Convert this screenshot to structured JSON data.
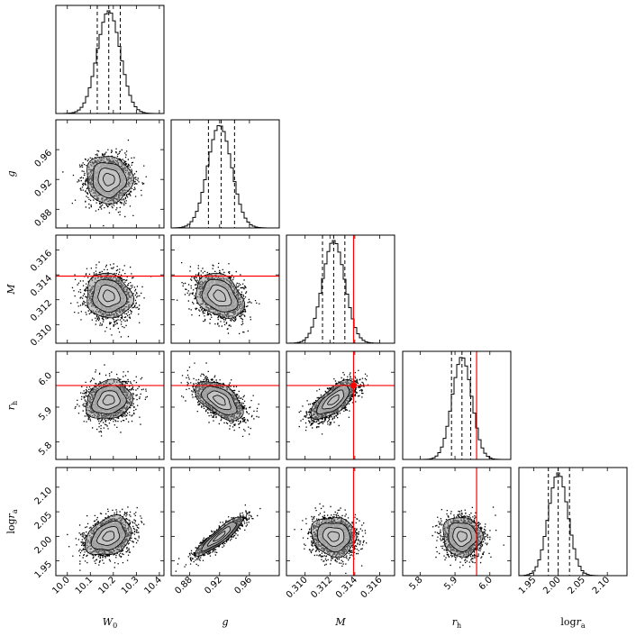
{
  "chart_data": {
    "type": "corner",
    "parameters": [
      {
        "key": "W0",
        "label": "W",
        "sub": "0",
        "range": [
          9.95,
          10.42
        ],
        "ticks": [
          10.0,
          10.1,
          10.2,
          10.3,
          10.4
        ],
        "tick_labels": [
          "10.0",
          "10.1",
          "10.2",
          "10.3",
          "10.4"
        ],
        "median": 10.18,
        "std": 0.05,
        "quantiles": [
          10.13,
          10.18,
          10.23
        ],
        "truth": null
      },
      {
        "key": "g",
        "label": "g",
        "sub": "",
        "range": [
          0.855,
          1.0
        ],
        "ticks": [
          0.88,
          0.92,
          0.96
        ],
        "tick_labels": [
          "0.88",
          "0.92",
          "0.96"
        ],
        "median": 0.92,
        "std": 0.016,
        "quantiles": [
          0.905,
          0.922,
          0.94
        ],
        "truth": null
      },
      {
        "key": "M",
        "label": "M",
        "sub": "",
        "range": [
          0.3085,
          0.3172
        ],
        "ticks": [
          0.31,
          0.312,
          0.314,
          0.316
        ],
        "tick_labels": [
          "0.310",
          "0.312",
          "0.314",
          "0.316"
        ],
        "median": 0.3123,
        "std": 0.0009,
        "quantiles": [
          0.3114,
          0.3123,
          0.3132
        ],
        "truth": 0.3139
      },
      {
        "key": "rh",
        "label": "r",
        "sub": "h",
        "range": [
          5.75,
          6.06
        ],
        "ticks": [
          5.8,
          5.9,
          6.0
        ],
        "tick_labels": [
          "5.8",
          "5.9",
          "6.0"
        ],
        "median": 5.92,
        "std": 0.028,
        "quantiles": [
          5.89,
          5.92,
          5.945
        ],
        "truth": 5.962
      },
      {
        "key": "logra",
        "label": "log",
        "label_rest": "r",
        "sub": "a",
        "range": [
          1.92,
          2.14
        ],
        "ticks": [
          1.95,
          2.0,
          2.05,
          2.1
        ],
        "tick_labels": [
          "1.95",
          "2.00",
          "2.05",
          "2.10"
        ],
        "median": 2.0,
        "std": 0.02,
        "quantiles": [
          1.98,
          2.0,
          2.023
        ],
        "truth": null
      }
    ],
    "correlations": {
      "g|W0": -0.05,
      "M|W0": -0.1,
      "M|g": -0.3,
      "rh|W0": 0.15,
      "rh|g": -0.55,
      "rh|M": 0.7,
      "logra|W0": 0.3,
      "logra|g": 0.9,
      "logra|M": -0.1,
      "logra|rh": -0.05
    },
    "truth_color": "#ff0000",
    "quantile_line_style": "dashed",
    "histogram_style": "step",
    "contour_fill": "grey",
    "scatter_color": "#000000"
  }
}
